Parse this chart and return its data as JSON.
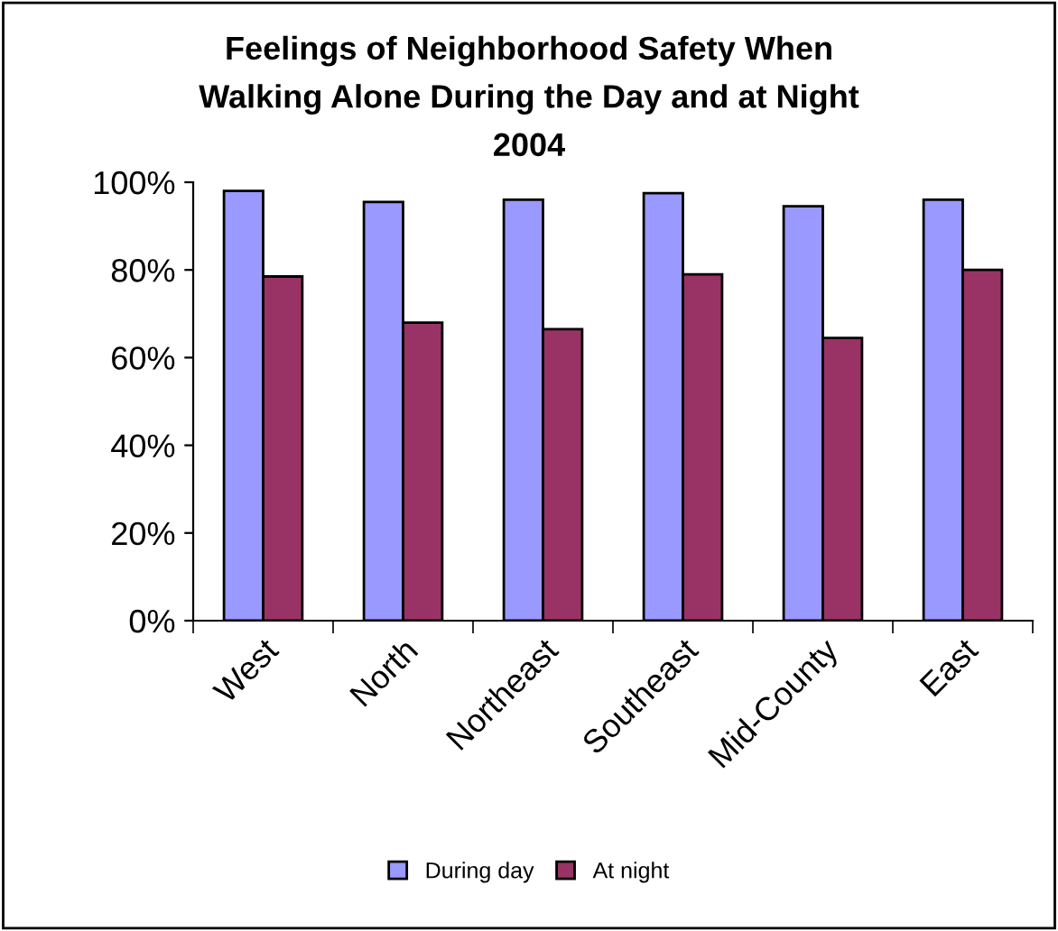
{
  "chart_data": {
    "type": "bar",
    "title": "Feelings of Neighborhood Safety When\nWalking Alone During the Day and at Night\n2004",
    "categories": [
      "West",
      "North",
      "Northeast",
      "Southeast",
      "Mid-County",
      "East"
    ],
    "series": [
      {
        "name": "During day",
        "color": "#9999ff",
        "values": [
          98,
          95.5,
          96,
          97.5,
          94.5,
          96
        ]
      },
      {
        "name": "At night",
        "color": "#993366",
        "values": [
          78.5,
          68,
          66.5,
          79,
          64.5,
          80
        ]
      }
    ],
    "ylim": [
      0,
      100
    ],
    "yticks": [
      {
        "value": 0,
        "label": "0%"
      },
      {
        "value": 20,
        "label": "20%"
      },
      {
        "value": 40,
        "label": "40%"
      },
      {
        "value": 60,
        "label": "60%"
      },
      {
        "value": 80,
        "label": "80%"
      },
      {
        "value": 100,
        "label": "100%"
      }
    ],
    "grid": false,
    "legend": "bottom"
  }
}
